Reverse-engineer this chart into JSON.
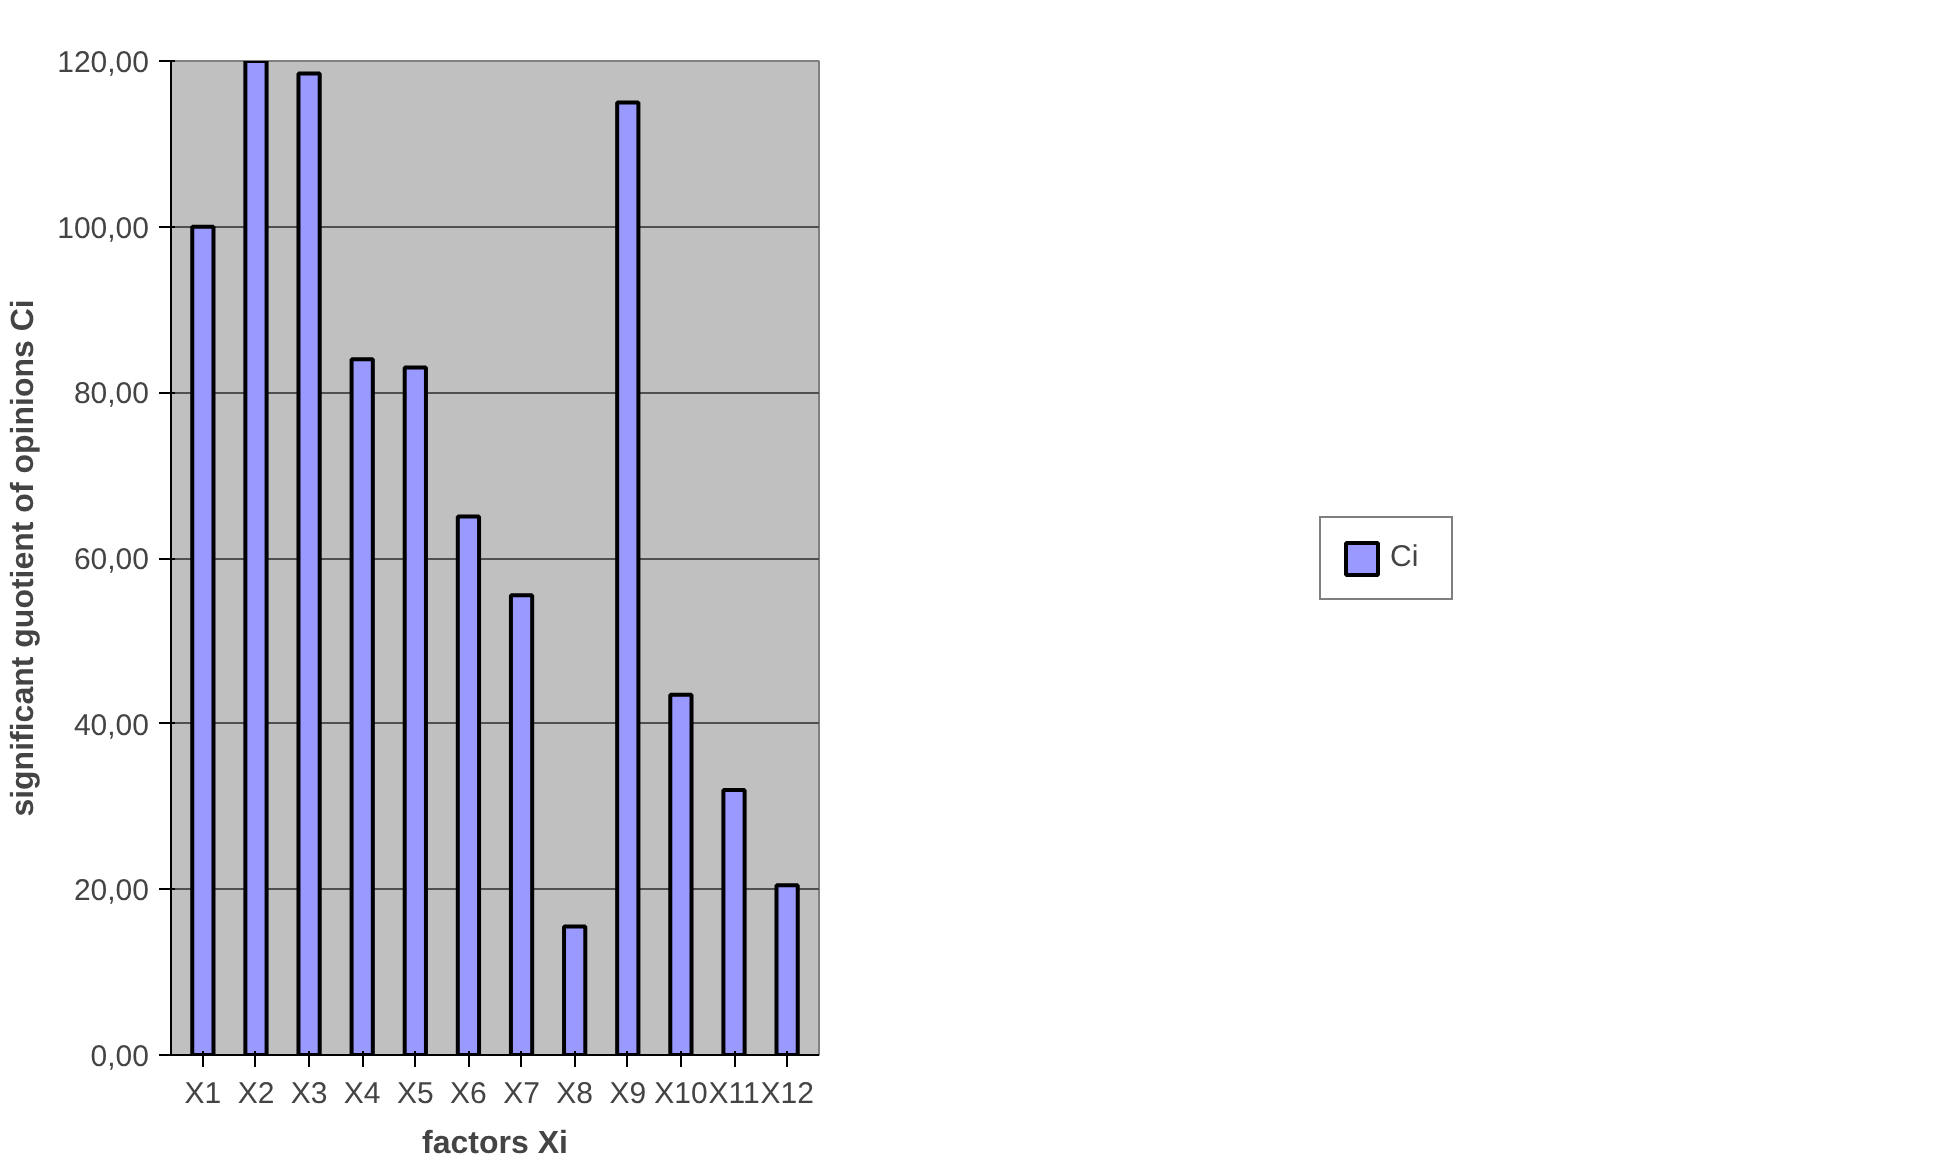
{
  "chart_data": {
    "type": "bar",
    "xlabel": "factors Xi",
    "ylabel": "significant guotient of opinions Ci",
    "categories": [
      "X1",
      "X2",
      "X3",
      "X4",
      "X5",
      "X6",
      "X7",
      "X8",
      "X9",
      "X10",
      "X11",
      "X12"
    ],
    "series": [
      {
        "name": "Ci",
        "color": "#9999ff",
        "values": [
          100,
          120,
          118.5,
          84,
          83,
          65,
          55.5,
          15.5,
          115,
          43.5,
          32,
          20.5
        ]
      }
    ],
    "ylim": [
      0,
      120
    ],
    "yticks": [
      {
        "value": 0,
        "label": "0,00"
      },
      {
        "value": 20,
        "label": "20,00"
      },
      {
        "value": 40,
        "label": "40,00"
      },
      {
        "value": 60,
        "label": "60,00"
      },
      {
        "value": 80,
        "label": "80,00"
      },
      {
        "value": 100,
        "label": "100,00"
      },
      {
        "value": 120,
        "label": "120,00"
      }
    ],
    "grid": "y",
    "legend": "right"
  }
}
